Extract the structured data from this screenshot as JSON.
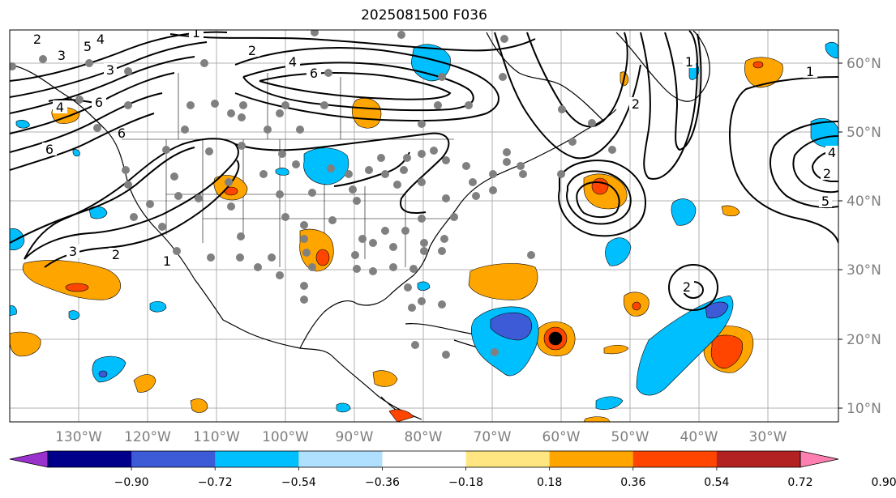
{
  "title": "2025081500 F036",
  "map": {
    "lat_labels": [
      "60°N",
      "50°N",
      "40°N",
      "30°N",
      "20°N",
      "10°N"
    ],
    "lon_labels": [
      "130°W",
      "120°W",
      "110°W",
      "100°W",
      "90°W",
      "80°W",
      "70°W",
      "60°W",
      "50°W",
      "40°W",
      "30°W"
    ],
    "contour_labels": [
      "1",
      "2",
      "3",
      "4",
      "5",
      "6",
      "6",
      "2",
      "4",
      "6",
      "1",
      "2",
      "1",
      "2",
      "3",
      "4",
      "2",
      "1",
      "4",
      "2",
      "5",
      "6",
      "3"
    ],
    "fill_colors": {
      "light_orange": "#ffa500",
      "dark_orange": "#ff4500",
      "light_blue": "#00bfff",
      "mid_blue": "#3d5bd6",
      "black_dot": "#000000",
      "station_gray": "#808080"
    }
  },
  "colorbar": {
    "colors": [
      "#9932cc",
      "#00008b",
      "#3d5bd6",
      "#00bfff",
      "#b0e0ff",
      "#ffffff",
      "#ffe680",
      "#ffa500",
      "#ff4500",
      "#b22222",
      "#ff80b0"
    ],
    "tick_labels": [
      "−0.90",
      "−0.72",
      "−0.54",
      "−0.36",
      "−0.18",
      "0.18",
      "0.36",
      "0.54",
      "0.72",
      "0.90"
    ]
  }
}
